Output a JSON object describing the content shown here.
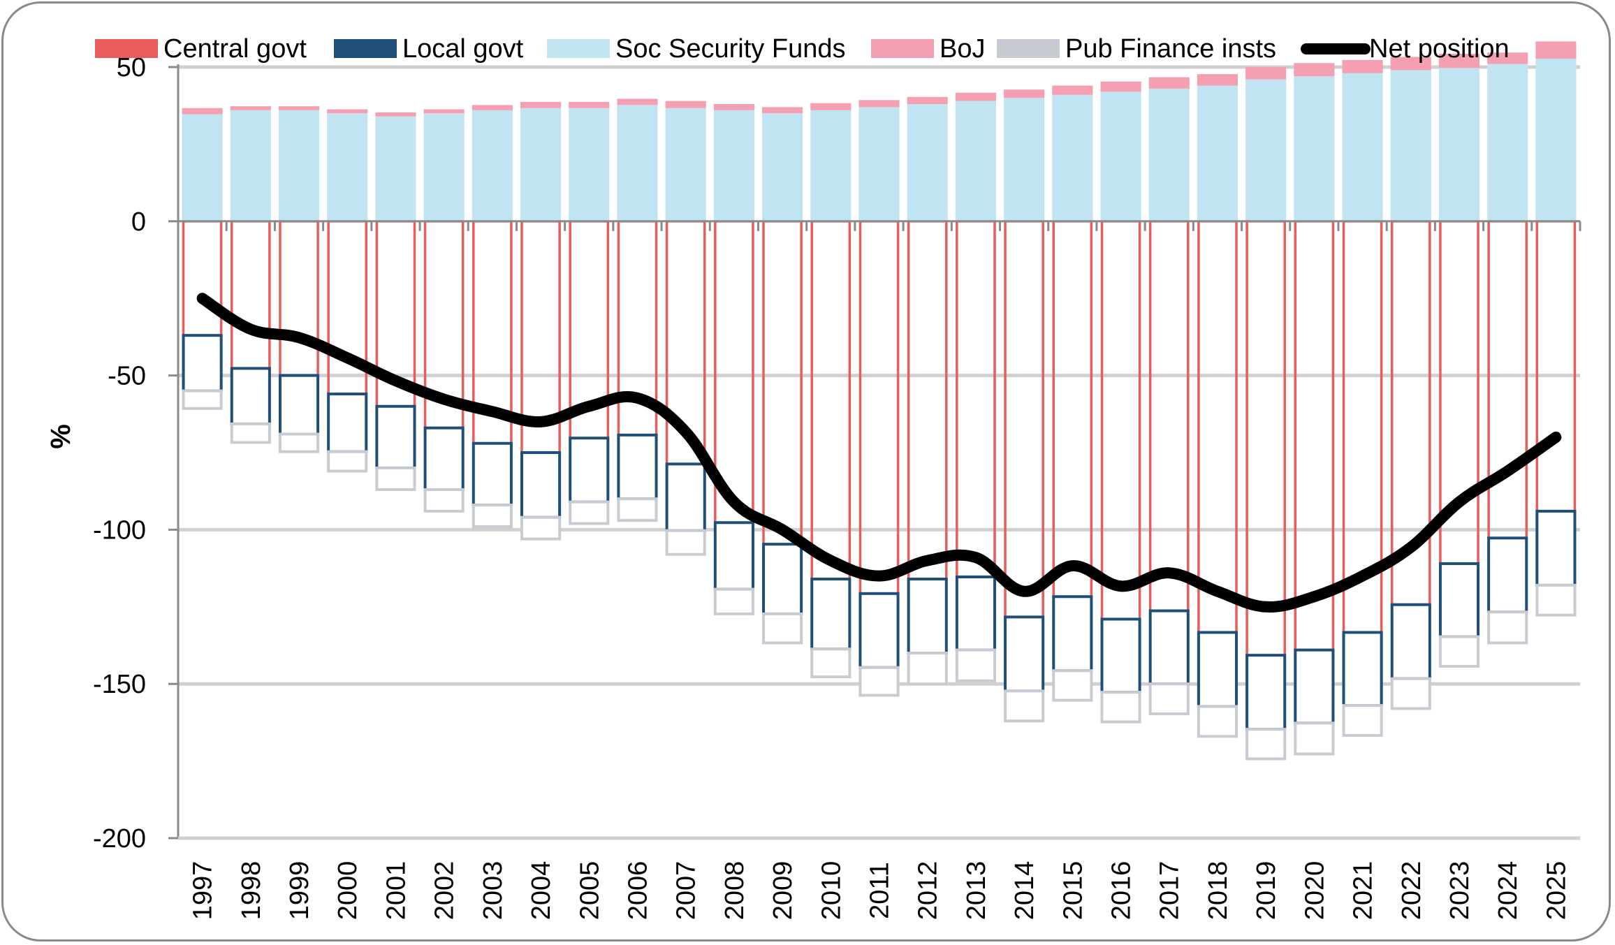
{
  "chart_data": {
    "type": "bar",
    "subtype": "stacked-bar-with-line",
    "title": "",
    "xlabel": "",
    "ylabel": "%",
    "ylim": [
      -200,
      50
    ],
    "yticks": [
      50,
      0,
      -50,
      -100,
      -150,
      -200
    ],
    "grid": true,
    "legend_position": "top",
    "categories": [
      "1997",
      "1998",
      "1999",
      "2000",
      "2001",
      "2002",
      "2003",
      "2004",
      "2005",
      "2006",
      "2007",
      "2008",
      "2009",
      "2010",
      "2011",
      "2012",
      "2013",
      "2014",
      "2015",
      "2016",
      "2017",
      "2018",
      "2019",
      "2020",
      "2021",
      "2022",
      "2023",
      "2024",
      "2025"
    ],
    "series": [
      {
        "name": "Central govt",
        "type": "bar",
        "color": "#E85C5C",
        "values": [
          -37,
          -47.7,
          -50,
          -56,
          -60,
          -67,
          -72,
          -75,
          -70.3,
          -69.3,
          -78.7,
          -97.7,
          -104.7,
          -116,
          -120.7,
          -116,
          -115.3,
          -128.3,
          -121.7,
          -129,
          -126.3,
          -133.3,
          -140.7,
          -139,
          -133.3,
          -124.3,
          -111,
          -102.7,
          -94
        ]
      },
      {
        "name": "Local govt",
        "type": "bar",
        "color": "#1F4E79",
        "values": [
          -18,
          -18,
          -19,
          -18.7,
          -20,
          -20,
          -20,
          -21,
          -20.7,
          -20.7,
          -21.6,
          -21.6,
          -22.6,
          -22.7,
          -24,
          -24,
          -23.7,
          -24,
          -24,
          -23.7,
          -23.7,
          -24,
          -24,
          -23.7,
          -23.7,
          -24,
          -23.7,
          -24,
          -24
        ]
      },
      {
        "name": "Soc Security Funds",
        "type": "bar",
        "color": "#C0E4F2",
        "values": [
          34.7,
          36,
          36,
          35,
          34,
          35,
          36,
          36.7,
          36.7,
          37.7,
          36.7,
          36,
          35,
          36,
          37,
          38,
          39,
          40,
          41,
          42,
          43,
          44,
          46,
          47,
          48,
          49,
          49.7,
          51,
          52.7
        ]
      },
      {
        "name": "BoJ",
        "type": "bar",
        "color": "#F4A0B2",
        "values": [
          2,
          1.3,
          1.3,
          1.3,
          1.3,
          1.3,
          1.7,
          2,
          2,
          2,
          2.3,
          2,
          2,
          2.3,
          2.3,
          2.3,
          2.7,
          2.7,
          3,
          3.3,
          3.7,
          3.7,
          4,
          4.3,
          4.3,
          4.3,
          4.6,
          3.7,
          5.6
        ]
      },
      {
        "name": "Pub Finance insts",
        "type": "bar",
        "color": "#C8CCD2",
        "values": [
          -5.7,
          -6,
          -5.7,
          -6.3,
          -7,
          -7,
          -7,
          -7,
          -7,
          -7,
          -7.7,
          -8,
          -9.4,
          -9,
          -9,
          -10,
          -10,
          -9.7,
          -9.6,
          -9.6,
          -9.7,
          -9.7,
          -9.6,
          -10,
          -9.7,
          -9.7,
          -9.6,
          -10,
          -9.7
        ]
      },
      {
        "name": "Net position",
        "type": "line",
        "color": "#000000",
        "values": [
          -25,
          -35,
          -37.7,
          -44.3,
          -51.7,
          -57.7,
          -61.7,
          -65,
          -60,
          -57.3,
          -68.3,
          -91,
          -100,
          -110,
          -115,
          -110,
          -109,
          -120,
          -111.7,
          -118.3,
          -114,
          -120,
          -125,
          -121.7,
          -115,
          -105.7,
          -91,
          -81,
          -70
        ]
      }
    ]
  },
  "legend": [
    {
      "label": "Central govt",
      "kind": "box",
      "color": "#E85C5C"
    },
    {
      "label": "Local govt",
      "kind": "box",
      "color": "#1F4E79"
    },
    {
      "label": "Soc Security Funds",
      "kind": "box",
      "color": "#C0E4F2"
    },
    {
      "label": "BoJ",
      "kind": "box",
      "color": "#F4A0B2"
    },
    {
      "label": "Pub Finance insts",
      "kind": "box",
      "color": "#C8CCD2"
    },
    {
      "label": "Net position",
      "kind": "line",
      "color": "#000000"
    }
  ]
}
